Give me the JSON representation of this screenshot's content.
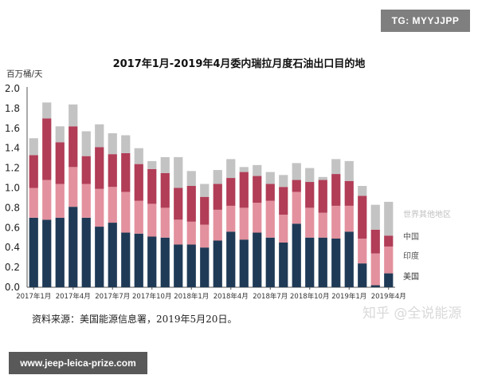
{
  "badge": "TG: MYYJJPP",
  "url": "www.jeep-leica-prize.com",
  "source": "资料来源：美国能源信息署，2019年5月20日。",
  "watermark": "知乎 @全说能源",
  "colors": {
    "us": "#1f3a56",
    "india": "#e3919e",
    "china": "#b13d57",
    "other": "#c3c3c3"
  },
  "chart_data": {
    "type": "bar",
    "stacked": true,
    "title": "2017年1月-2019年4月委内瑞拉月度石油出口目的地",
    "ylabel": "百万桶/天",
    "ylim": [
      0,
      2.0
    ],
    "yticks": [
      "0.0",
      "0.2",
      "0.4",
      "0.6",
      "0.8",
      "1.0",
      "1.2",
      "1.4",
      "1.6",
      "1.8",
      "2.0"
    ],
    "categories": [
      "2017年1月",
      "2017年2月",
      "2017年3月",
      "2017年4月",
      "2017年5月",
      "2017年6月",
      "2017年7月",
      "2017年8月",
      "2017年9月",
      "2017年10月",
      "2017年11月",
      "2017年12月",
      "2018年1月",
      "2018年2月",
      "2018年3月",
      "2018年4月",
      "2018年5月",
      "2018年6月",
      "2018年7月",
      "2018年8月",
      "2018年9月",
      "2018年10月",
      "2018年11月",
      "2018年12月",
      "2019年1月",
      "2019年2月",
      "2019年3月",
      "2019年4月"
    ],
    "tick_labels": [
      {
        "index": 0,
        "label": "2017年1月"
      },
      {
        "index": 3,
        "label": "2017年4月"
      },
      {
        "index": 6,
        "label": "2017年7月"
      },
      {
        "index": 9,
        "label": "2017年10月"
      },
      {
        "index": 12,
        "label": "2018年1月"
      },
      {
        "index": 15,
        "label": "2018年4月"
      },
      {
        "index": 18,
        "label": "2018年7月"
      },
      {
        "index": 21,
        "label": "2018年10月"
      },
      {
        "index": 24,
        "label": "2019年1月"
      },
      {
        "index": 27,
        "label": "2019年4月"
      }
    ],
    "series": [
      {
        "name": "美国",
        "key": "us",
        "values": [
          0.7,
          0.68,
          0.7,
          0.81,
          0.7,
          0.61,
          0.65,
          0.55,
          0.54,
          0.51,
          0.5,
          0.43,
          0.43,
          0.4,
          0.47,
          0.56,
          0.48,
          0.55,
          0.5,
          0.45,
          0.64,
          0.5,
          0.5,
          0.49,
          0.56,
          0.24,
          0.02,
          0.14
        ]
      },
      {
        "name": "印度",
        "key": "india",
        "values": [
          0.3,
          0.4,
          0.34,
          0.4,
          0.34,
          0.38,
          0.36,
          0.41,
          0.33,
          0.33,
          0.3,
          0.25,
          0.23,
          0.23,
          0.31,
          0.26,
          0.32,
          0.3,
          0.37,
          0.28,
          0.32,
          0.3,
          0.25,
          0.33,
          0.26,
          0.25,
          0.32,
          0.27
        ]
      },
      {
        "name": "中国",
        "key": "china",
        "values": [
          0.33,
          0.62,
          0.42,
          0.41,
          0.28,
          0.42,
          0.33,
          0.39,
          0.37,
          0.35,
          0.35,
          0.32,
          0.36,
          0.28,
          0.26,
          0.28,
          0.36,
          0.27,
          0.17,
          0.28,
          0.12,
          0.26,
          0.33,
          0.32,
          0.25,
          0.43,
          0.24,
          0.11
        ]
      },
      {
        "name": "世界其他地区",
        "key": "other",
        "values": [
          0.17,
          0.16,
          0.16,
          0.22,
          0.25,
          0.23,
          0.21,
          0.18,
          0.16,
          0.08,
          0.16,
          0.31,
          0.15,
          0.13,
          0.14,
          0.19,
          0.05,
          0.11,
          0.12,
          0.12,
          0.17,
          0.14,
          0.03,
          0.15,
          0.2,
          0.1,
          0.25,
          0.34
        ]
      }
    ],
    "legend": [
      "世界其他地区",
      "中国",
      "印度",
      "美国"
    ],
    "legend_position": "right"
  }
}
